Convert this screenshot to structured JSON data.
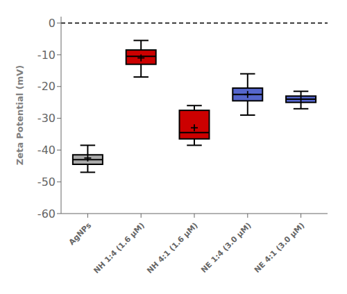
{
  "chart_data": {
    "type": "box",
    "ylabel": "Zeta Potential (mV)",
    "categories": [
      "AgNPs",
      "NH 1:4 (1.6 μM)",
      "NH 4:1 (1.6 μM)",
      "NE 1:4 (3.0 μM)",
      "NE 4:1 (3.0 μM)"
    ],
    "colors": [
      "#aaaaaa",
      "#cc0000",
      "#cc0000",
      "#5566cc",
      "#5566cc"
    ],
    "whislo": [
      -47.0,
      -17.0,
      -38.5,
      -29.0,
      -27.0
    ],
    "q1": [
      -44.5,
      -13.0,
      -36.5,
      -24.5,
      -25.0
    ],
    "med": [
      -43.0,
      -10.5,
      -34.5,
      -22.5,
      -24.0
    ],
    "q3": [
      -41.5,
      -8.5,
      -27.5,
      -20.5,
      -23.0
    ],
    "whishi": [
      -38.5,
      -5.5,
      -26.0,
      -16.0,
      -21.5
    ],
    "mean": [
      -42.5,
      -11.0,
      -33.0,
      -22.5,
      -24.0
    ],
    "ylim": [
      -60,
      2
    ],
    "yticks": [
      0,
      -10,
      -20,
      -30,
      -40,
      -50,
      -60
    ],
    "hline": 0,
    "grid": false,
    "marker": "plus"
  }
}
